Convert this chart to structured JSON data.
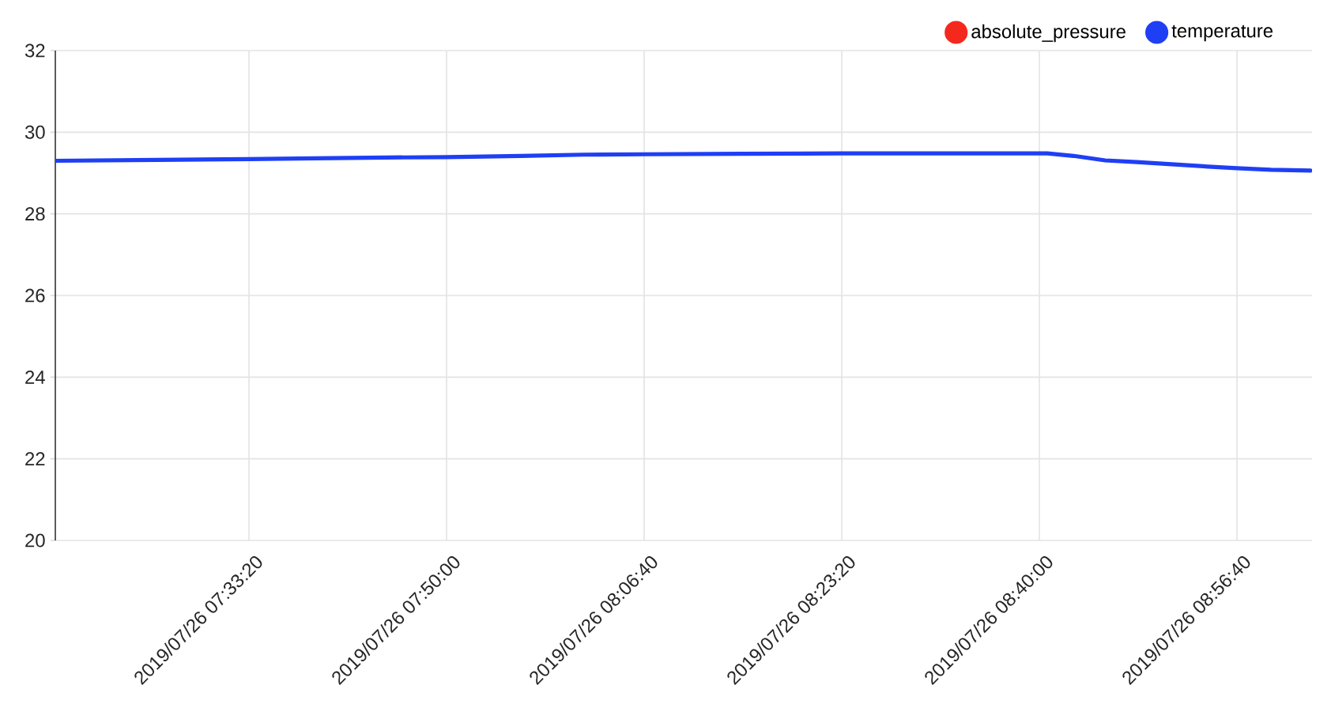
{
  "chart_data": {
    "type": "line",
    "x": [
      "2019-07-26T07:17:00",
      "2019-07-26T07:25:36",
      "2019-07-26T07:33:20",
      "2019-07-26T07:38:56",
      "2019-07-26T07:44:55",
      "2019-07-26T07:50:00",
      "2019-07-26T07:56:15",
      "2019-07-26T08:01:35",
      "2019-07-26T08:06:40",
      "2019-07-26T08:14:54",
      "2019-07-26T08:23:20",
      "2019-07-26T08:32:13",
      "2019-07-26T08:40:00",
      "2019-07-26T08:40:40",
      "2019-07-26T08:42:53",
      "2019-07-26T08:45:33",
      "2019-07-26T08:48:13",
      "2019-07-26T08:50:53",
      "2019-07-26T08:53:33",
      "2019-07-26T08:56:40",
      "2019-07-26T08:59:32",
      "2019-07-26T09:02:52"
    ],
    "series": [
      {
        "name": "absolute_pressure",
        "color": "#f5281e",
        "values": [
          null,
          null,
          null,
          null,
          null,
          null,
          null,
          null,
          null,
          null,
          null,
          null,
          null,
          null,
          null,
          null,
          null,
          null,
          null,
          null,
          null,
          null
        ]
      },
      {
        "name": "temperature",
        "color": "#1f3ff5",
        "values": [
          29.3,
          29.32,
          29.34,
          29.36,
          29.38,
          29.39,
          29.42,
          29.45,
          29.46,
          29.47,
          29.48,
          29.48,
          29.48,
          29.48,
          29.42,
          29.31,
          29.27,
          29.22,
          29.17,
          29.12,
          29.08,
          29.06
        ]
      }
    ],
    "xlim": [
      "2019-07-26T07:17:00",
      "2019-07-26T09:03:00"
    ],
    "xticks": [
      {
        "value": "2019-07-26T07:33:20",
        "label": "2019/07/26 07:33:20"
      },
      {
        "value": "2019-07-26T07:50:00",
        "label": "2019/07/26 07:50:00"
      },
      {
        "value": "2019-07-26T08:06:40",
        "label": "2019/07/26 08:06:40"
      },
      {
        "value": "2019-07-26T08:23:20",
        "label": "2019/07/26 08:23:20"
      },
      {
        "value": "2019-07-26T08:40:00",
        "label": "2019/07/26 08:40:00"
      },
      {
        "value": "2019-07-26T08:56:40",
        "label": "2019/07/26 08:56:40"
      }
    ],
    "ylim": [
      20,
      32
    ],
    "yticks": [
      20,
      22,
      24,
      26,
      28,
      30,
      32
    ],
    "grid": true,
    "legend": "top right"
  }
}
